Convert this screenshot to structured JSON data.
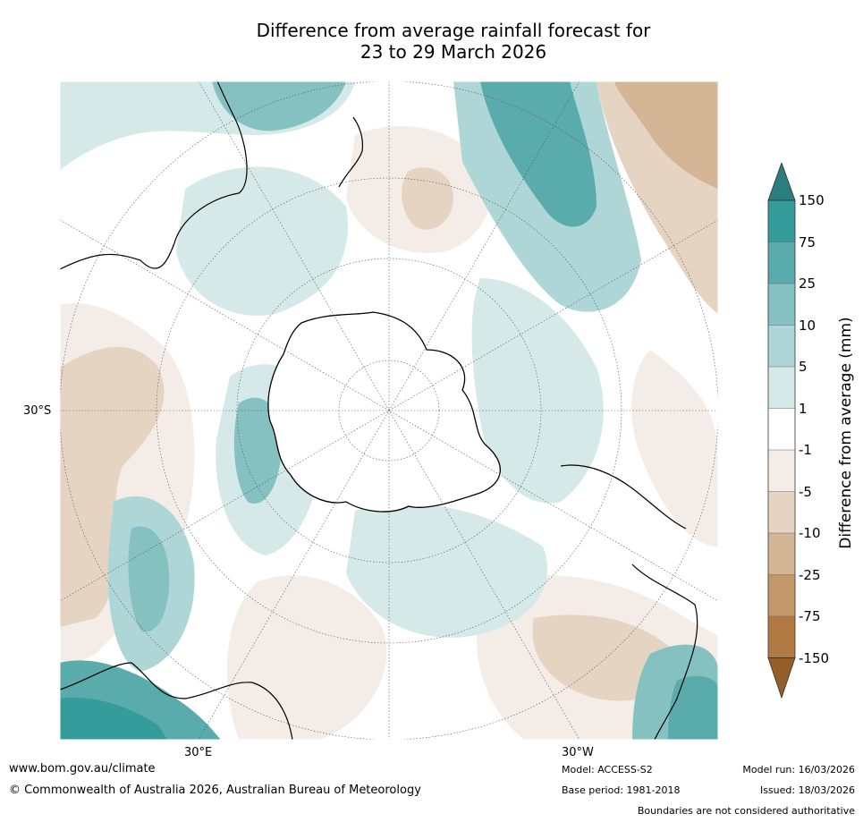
{
  "title": {
    "line1": "Difference from average rainfall forecast for",
    "line2": "23 to 29 March 2026"
  },
  "map": {
    "lat_label": "30°S",
    "lon_labels": [
      "30°E",
      "30°W"
    ]
  },
  "legend": {
    "title": "Difference from average (mm)",
    "ticks": [
      "150",
      "75",
      "25",
      "10",
      "5",
      "1",
      "-1",
      "-5",
      "-10",
      "-25",
      "-75",
      "-150"
    ],
    "colors": {
      "over": "#2a7f7e",
      "g150": "#349c9a",
      "g75": "#5aabab",
      "g25": "#86c1c1",
      "g10": "#afd6d6",
      "g5": "#d5e9e8",
      "neutral": "#ffffff",
      "b1": "#f4ede7",
      "b5": "#e6d4c3",
      "b10": "#d4b595",
      "b25": "#c2976a",
      "b75": "#b07a42",
      "under": "#955e27"
    }
  },
  "footer": {
    "url": "www.bom.gov.au/climate",
    "copyright": "© Commonwealth of Australia 2026, Australian Bureau of Meteorology",
    "model": "Model: ACCESS-S2",
    "base_period": "Base period: 1981-2018",
    "model_run": "Model run: 16/03/2026",
    "issued": "Issued: 18/03/2026",
    "disclaimer": "Boundaries are not considered authoritative"
  }
}
